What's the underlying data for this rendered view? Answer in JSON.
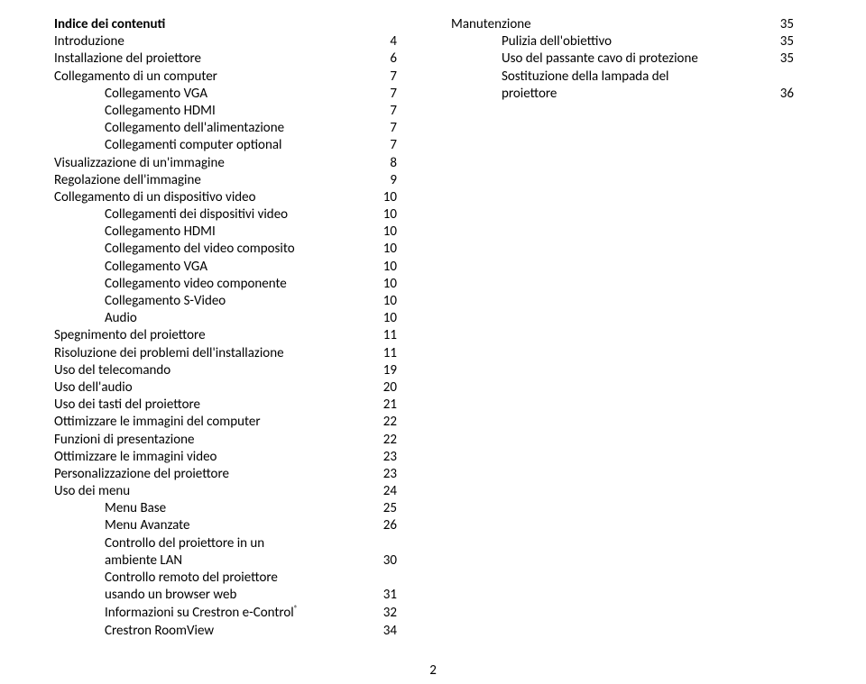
{
  "left": [
    {
      "label": "Indice dei contenuti",
      "num": "",
      "bold": true,
      "indent": 0
    },
    {
      "label": "Introduzione",
      "num": "4",
      "bold": false,
      "indent": 0
    },
    {
      "label": "Installazione del proiettore",
      "num": "6",
      "bold": false,
      "indent": 0
    },
    {
      "label": "Collegamento di un computer",
      "num": "7",
      "bold": false,
      "indent": 0
    },
    {
      "label": "Collegamento VGA",
      "num": "7",
      "bold": false,
      "indent": 1
    },
    {
      "label": "Collegamento HDMI",
      "num": "7",
      "bold": false,
      "indent": 1
    },
    {
      "label": "Collegamento dell'alimentazione",
      "num": "7",
      "bold": false,
      "indent": 1
    },
    {
      "label": "Collegamenti computer optional",
      "num": "7",
      "bold": false,
      "indent": 1
    },
    {
      "label": "Visualizzazione di un'immagine",
      "num": "8",
      "bold": false,
      "indent": 0
    },
    {
      "label": "Regolazione dell'immagine",
      "num": "9",
      "bold": false,
      "indent": 0
    },
    {
      "label": "Collegamento di un dispositivo video",
      "num": "10",
      "bold": false,
      "indent": 0
    },
    {
      "label": "Collegamenti dei dispositivi video",
      "num": "10",
      "bold": false,
      "indent": 1
    },
    {
      "label": "Collegamento HDMI",
      "num": "10",
      "bold": false,
      "indent": 1
    },
    {
      "label": "Collegamento del video composito",
      "num": "10",
      "bold": false,
      "indent": 1
    },
    {
      "label": "Collegamento VGA",
      "num": "10",
      "bold": false,
      "indent": 1
    },
    {
      "label": "Collegamento video componente",
      "num": "10",
      "bold": false,
      "indent": 1
    },
    {
      "label": "Collegamento S-Video",
      "num": "10",
      "bold": false,
      "indent": 1
    },
    {
      "label": "Audio",
      "num": "10",
      "bold": false,
      "indent": 1
    },
    {
      "label": "Spegnimento del proiettore",
      "num": "11",
      "bold": false,
      "indent": 0
    },
    {
      "label": "Risoluzione dei problemi dell'installazione",
      "num": "11",
      "bold": false,
      "indent": 0
    },
    {
      "label": "Uso del telecomando",
      "num": "19",
      "bold": false,
      "indent": 0
    },
    {
      "label": "Uso dell'audio",
      "num": "20",
      "bold": false,
      "indent": 0
    },
    {
      "label": "Uso dei tasti del proiettore",
      "num": "21",
      "bold": false,
      "indent": 0
    },
    {
      "label": "Ottimizzare le immagini del computer",
      "num": "22",
      "bold": false,
      "indent": 0
    },
    {
      "label": "Funzioni di presentazione",
      "num": "22",
      "bold": false,
      "indent": 0
    },
    {
      "label": "Ottimizzare le immagini video",
      "num": "23",
      "bold": false,
      "indent": 0
    },
    {
      "label": "Personalizzazione del proiettore",
      "num": "23",
      "bold": false,
      "indent": 0
    },
    {
      "label": "Uso dei menu",
      "num": "24",
      "bold": false,
      "indent": 0
    },
    {
      "label": "Menu Base",
      "num": "25",
      "bold": false,
      "indent": 1
    },
    {
      "label": "Menu Avanzate",
      "num": "26",
      "bold": false,
      "indent": 1
    },
    {
      "label": "Controllo del proiettore in un",
      "num": "",
      "bold": false,
      "indent": 1
    },
    {
      "label": "ambiente LAN",
      "num": "30",
      "bold": false,
      "indent": 1
    },
    {
      "label": "Controllo remoto del proiettore",
      "num": "",
      "bold": false,
      "indent": 1
    },
    {
      "label": "usando un browser web",
      "num": "31",
      "bold": false,
      "indent": 1
    },
    {
      "label": "Informazioni su Crestron e-Control®",
      "num": "32",
      "bold": false,
      "indent": 1,
      "sup": true
    },
    {
      "label": "Crestron RoomView",
      "num": "34",
      "bold": false,
      "indent": 1
    }
  ],
  "right": [
    {
      "label": "Manutenzione",
      "num": "35",
      "bold": false,
      "indent": 0
    },
    {
      "label": "Pulizia dell'obiettivo",
      "num": "35",
      "bold": false,
      "indent": 1
    },
    {
      "label": "Uso del passante cavo di protezione",
      "num": "35",
      "bold": false,
      "indent": 1
    },
    {
      "label": "Sostituzione della lampada del",
      "num": "",
      "bold": false,
      "indent": 1
    },
    {
      "label": "proiettore",
      "num": "36",
      "bold": false,
      "indent": 1
    }
  ],
  "pageNumber": "2"
}
